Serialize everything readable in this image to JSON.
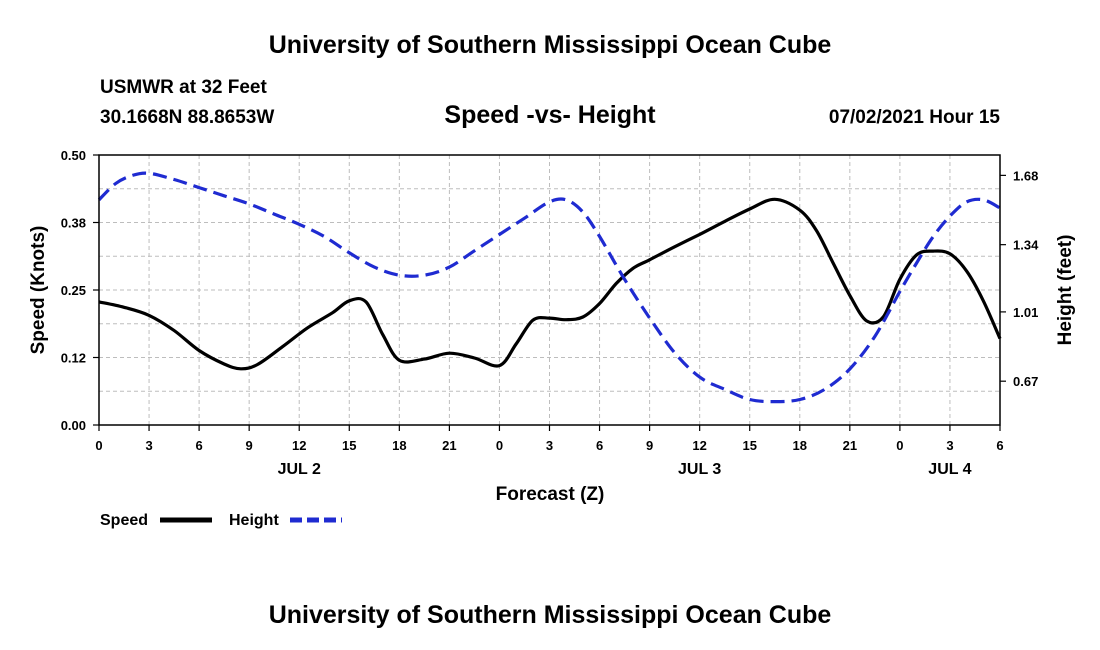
{
  "page": {
    "title_top": "University of Southern Mississippi Ocean Cube",
    "title_bottom": "University of Southern Mississippi Ocean Cube",
    "station": "USMWR at 32 Feet",
    "location": "30.1668N  88.8653W",
    "date": "07/02/2021 Hour 15"
  },
  "colors": {
    "speed": "#000000",
    "height": "#1f2bd1",
    "grid": "#bdbdbd"
  },
  "chart_data": {
    "type": "line",
    "title": "Speed -vs- Height",
    "xlabel": "Forecast (Z)",
    "ylabel": "Speed (Knots)",
    "y2label": "Height (feet)",
    "xlim": [
      0,
      54
    ],
    "x_ticks": [
      0,
      3,
      6,
      9,
      12,
      15,
      18,
      21,
      24,
      27,
      30,
      33,
      36,
      39,
      42,
      45,
      48,
      51,
      54
    ],
    "x_tick_labels": [
      "0",
      "3",
      "6",
      "9",
      "12",
      "15",
      "18",
      "21",
      "0",
      "3",
      "6",
      "9",
      "12",
      "15",
      "18",
      "21",
      "0",
      "3",
      "6"
    ],
    "day_labels": [
      {
        "x": 12,
        "label": "JUL 2"
      },
      {
        "x": 36,
        "label": "JUL 3"
      },
      {
        "x": 51,
        "label": "JUL 4"
      }
    ],
    "ylim": [
      0,
      0.5
    ],
    "y_ticks": [
      0.0,
      0.125,
      0.25,
      0.375,
      0.5
    ],
    "y_tick_labels": [
      "0.00",
      "0.12",
      "0.25",
      "0.38",
      "0.50"
    ],
    "y2lim": [
      0.455,
      1.78
    ],
    "y2_ticks": [
      0.67,
      1.01,
      1.34,
      1.68
    ],
    "y2_tick_labels": [
      "0.67",
      "1.01",
      "1.34",
      "1.68"
    ],
    "series": [
      {
        "name": "Speed",
        "axis": "left",
        "style": "solid",
        "x": [
          0,
          1.5,
          3,
          4.5,
          6,
          7.5,
          8.5,
          9.5,
          11,
          12.5,
          14,
          15,
          16,
          17,
          18,
          19.5,
          21,
          22.5,
          24,
          25,
          26,
          27,
          28,
          29,
          30,
          31,
          32,
          33,
          34.5,
          36,
          37.5,
          39,
          40.5,
          42,
          43,
          44,
          45,
          46,
          47,
          48,
          49,
          50,
          51,
          52,
          53,
          54
        ],
        "values": [
          0.228,
          0.218,
          0.203,
          0.175,
          0.138,
          0.113,
          0.104,
          0.112,
          0.145,
          0.18,
          0.208,
          0.23,
          0.228,
          0.168,
          0.12,
          0.122,
          0.133,
          0.124,
          0.11,
          0.15,
          0.194,
          0.198,
          0.195,
          0.2,
          0.225,
          0.262,
          0.29,
          0.306,
          0.33,
          0.353,
          0.377,
          0.4,
          0.418,
          0.398,
          0.36,
          0.3,
          0.24,
          0.193,
          0.2,
          0.27,
          0.315,
          0.322,
          0.317,
          0.285,
          0.23,
          0.16
        ]
      },
      {
        "name": "Height",
        "axis": "right",
        "style": "dashed",
        "x": [
          0,
          1,
          2,
          3,
          4.5,
          6,
          7.5,
          9,
          10.5,
          12,
          13.5,
          15,
          16.5,
          18,
          19.5,
          21,
          22.5,
          24,
          25.5,
          27,
          28,
          29,
          30,
          31.5,
          33,
          34.5,
          36,
          37.5,
          39,
          40.5,
          42,
          43.5,
          45,
          46.5,
          48,
          49,
          50,
          51,
          52,
          53,
          54
        ],
        "values": [
          1.56,
          1.64,
          1.68,
          1.69,
          1.66,
          1.62,
          1.58,
          1.54,
          1.49,
          1.44,
          1.38,
          1.3,
          1.23,
          1.19,
          1.19,
          1.23,
          1.31,
          1.39,
          1.47,
          1.55,
          1.56,
          1.5,
          1.38,
          1.17,
          0.98,
          0.81,
          0.69,
          0.63,
          0.58,
          0.57,
          0.58,
          0.63,
          0.73,
          0.89,
          1.11,
          1.25,
          1.38,
          1.48,
          1.55,
          1.56,
          1.52
        ]
      }
    ],
    "legend": [
      {
        "label": "Speed",
        "series": "Speed"
      },
      {
        "label": "Height",
        "series": "Height"
      }
    ],
    "grid": true,
    "legend_position": "bottom-left"
  }
}
